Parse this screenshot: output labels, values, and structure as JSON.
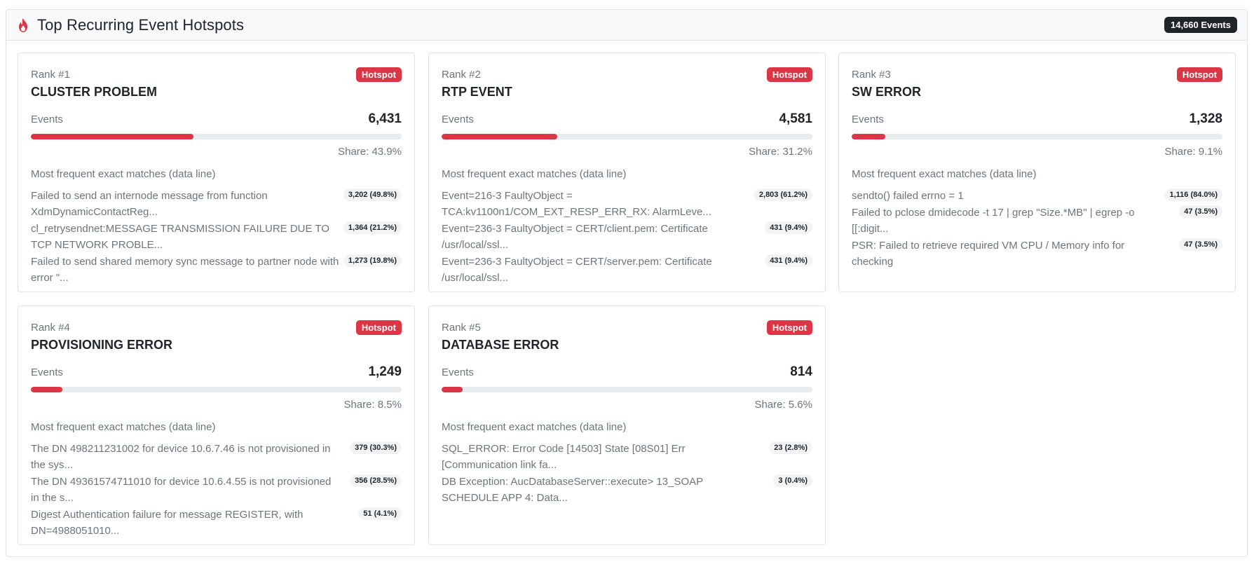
{
  "header": {
    "title": "Top Recurring Event Hotspots",
    "total_badge": "14,660 Events"
  },
  "colors": {
    "accent": "#dc3545",
    "dark": "#212529",
    "muted": "#6c757d",
    "track": "#e9ecef"
  },
  "cards": [
    {
      "rank": "Rank #1",
      "badge": "Hotspot",
      "title": "CLUSTER PROBLEM",
      "events_label": "Events",
      "events_count": "6,431",
      "share_fraction": 0.439,
      "share_label": "Share: 43.9%",
      "matches_title": "Most frequent exact matches (data line)",
      "matches": [
        {
          "text": "Failed to send an internode message from function XdmDynamicContactReg...",
          "badge": "3,202 (49.8%)"
        },
        {
          "text": "cl_retrysendnet:MESSAGE TRANSMISSION FAILURE DUE TO TCP NETWORK PROBLE...",
          "badge": "1,364 (21.2%)"
        },
        {
          "text": "Failed to send shared memory sync message to partner node with error \"...",
          "badge": "1,273 (19.8%)"
        }
      ]
    },
    {
      "rank": "Rank #2",
      "badge": "Hotspot",
      "title": "RTP EVENT",
      "events_label": "Events",
      "events_count": "4,581",
      "share_fraction": 0.312,
      "share_label": "Share: 31.2%",
      "matches_title": "Most frequent exact matches (data line)",
      "matches": [
        {
          "text": "Event=216-3 FaultyObject = TCA:kv1100n1/COM_EXT_RESP_ERR_RX: AlarmLeve...",
          "badge": "2,803 (61.2%)"
        },
        {
          "text": "Event=236-3 FaultyObject = CERT/client.pem: Certificate /usr/local/ssl...",
          "badge": "431 (9.4%)"
        },
        {
          "text": "Event=236-3 FaultyObject = CERT/server.pem: Certificate /usr/local/ssl...",
          "badge": "431 (9.4%)"
        }
      ]
    },
    {
      "rank": "Rank #3",
      "badge": "Hotspot",
      "title": "SW ERROR",
      "events_label": "Events",
      "events_count": "1,328",
      "share_fraction": 0.091,
      "share_label": "Share: 9.1%",
      "matches_title": "Most frequent exact matches (data line)",
      "matches": [
        {
          "text": "sendto() failed errno = 1",
          "badge": "1,116 (84.0%)"
        },
        {
          "text": "Failed to pclose dmidecode -t 17 | grep \"Size.*MB\" | egrep -o [[:digit...",
          "badge": "47 (3.5%)"
        },
        {
          "text": "PSR: Failed to retrieve required VM CPU / Memory info for checking",
          "badge": "47 (3.5%)"
        }
      ]
    },
    {
      "rank": "Rank #4",
      "badge": "Hotspot",
      "title": "PROVISIONING ERROR",
      "events_label": "Events",
      "events_count": "1,249",
      "share_fraction": 0.085,
      "share_label": "Share: 8.5%",
      "matches_title": "Most frequent exact matches (data line)",
      "matches": [
        {
          "text": "The DN 498211231002 for device 10.6.7.46 is not provisioned in the sys...",
          "badge": "379 (30.3%)"
        },
        {
          "text": "The DN 49361574711010 for device 10.6.4.55 is not provisioned in the s...",
          "badge": "356 (28.5%)"
        },
        {
          "text": "Digest Authentication failure for message REGISTER, with DN=4988051010...",
          "badge": "51 (4.1%)"
        }
      ]
    },
    {
      "rank": "Rank #5",
      "badge": "Hotspot",
      "title": "DATABASE ERROR",
      "events_label": "Events",
      "events_count": "814",
      "share_fraction": 0.056,
      "share_label": "Share: 5.6%",
      "matches_title": "Most frequent exact matches (data line)",
      "matches": [
        {
          "text": "SQL_ERROR: Error Code [14503] State [08S01] Err [Communication link fa...",
          "badge": "23 (2.8%)"
        },
        {
          "text": "DB Exception: AucDatabaseServer::execute> 13_SOAP SCHEDULE APP 4: Data...",
          "badge": "3 (0.4%)"
        }
      ]
    }
  ]
}
